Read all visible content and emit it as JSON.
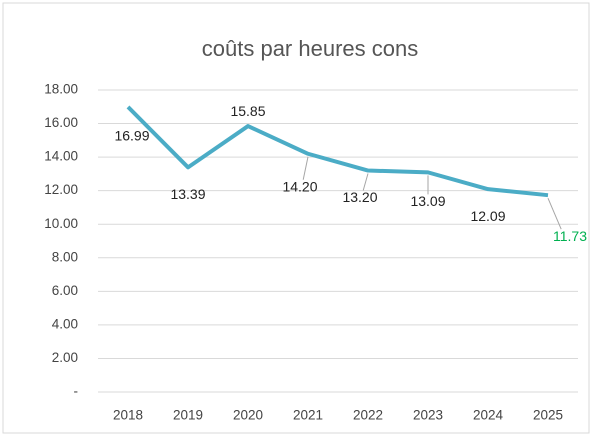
{
  "chart_data": {
    "type": "line",
    "title": "coûts par heures cons",
    "categories": [
      "2018",
      "2019",
      "2020",
      "2021",
      "2022",
      "2023",
      "2024",
      "2025"
    ],
    "series": [
      {
        "name": "coûts par heures cons",
        "color": "#4bacc6",
        "values": [
          16.99,
          13.39,
          15.85,
          14.2,
          13.2,
          13.09,
          12.09,
          11.73
        ],
        "value_labels": [
          "16.99",
          "13.39",
          "15.85",
          "14.20",
          "13.20",
          "13.09",
          "12.09",
          "11.73"
        ],
        "value_label_colors": [
          "#222222",
          "#222222",
          "#222222",
          "#222222",
          "#222222",
          "#222222",
          "#222222",
          "#00b050"
        ]
      }
    ],
    "ylim": [
      0,
      18
    ],
    "yticks": [
      {
        "value": 0,
        "label": "-"
      },
      {
        "value": 2,
        "label": "2.00"
      },
      {
        "value": 4,
        "label": "4.00"
      },
      {
        "value": 6,
        "label": "6.00"
      },
      {
        "value": 8,
        "label": "8.00"
      },
      {
        "value": 10,
        "label": "10.00"
      },
      {
        "value": 12,
        "label": "12.00"
      },
      {
        "value": 14,
        "label": "14.00"
      },
      {
        "value": 16,
        "label": "16.00"
      },
      {
        "value": 18,
        "label": "18.00"
      }
    ],
    "grid": true
  }
}
